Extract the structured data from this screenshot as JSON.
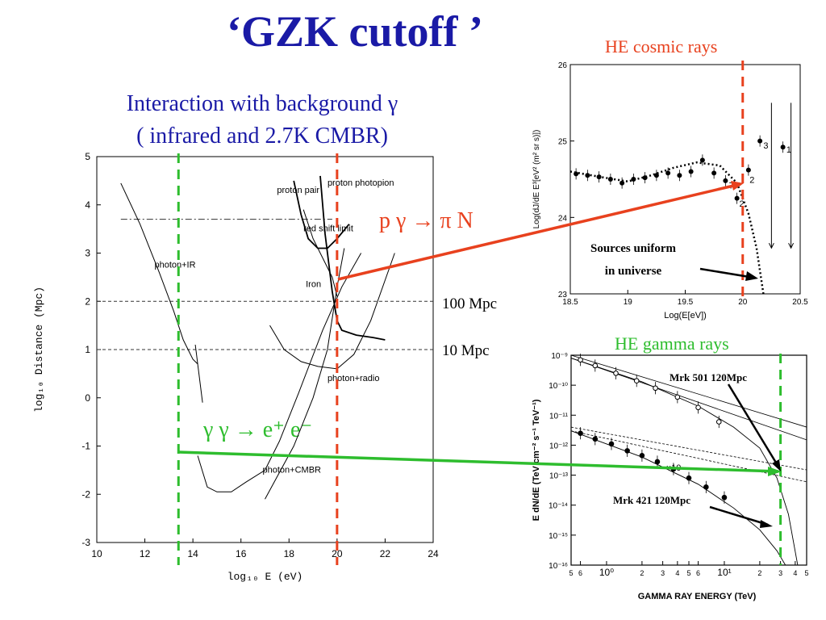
{
  "slide": {
    "title": "‘GZK cutoff ’",
    "subtitle_line1": "Interaction with background γ",
    "subtitle_line2": "( infrared and 2.7K  CMBR)",
    "reaction_proton": "p γ → π N",
    "reaction_gamma_html": "γ γ → e⁺ e⁻",
    "label_100mpc": "100 Mpc",
    "label_10mpc": "10 Mpc",
    "caption_cosmic": "HE cosmic rays",
    "caption_gamma": "HE gamma rays",
    "sources_uniform_1": "Sources uniform",
    "sources_uniform_2": "in universe",
    "mrk501": "Mrk 501 120Mpc",
    "mrk421": "Mrk 421 120Mpc"
  },
  "colors": {
    "title_blue": "#1a1aa6",
    "red_line": "#e8411e",
    "green_line": "#2ebd2e",
    "cosmic_caption": "#e8411e",
    "gamma_caption": "#2ebd2e"
  },
  "chart_data": [
    {
      "type": "line",
      "id": "distance-vs-energy",
      "xlabel": "log₁₀ E (eV)",
      "ylabel": "log₁₀ Distance (Mpc)",
      "xlim": [
        10,
        24
      ],
      "ylim": [
        -3,
        5
      ],
      "xticks": [
        10,
        12,
        14,
        16,
        18,
        20,
        22,
        24
      ],
      "yticks": [
        -3,
        -2,
        -1,
        0,
        1,
        2,
        3,
        4,
        5
      ],
      "annotations": [
        "proton pair",
        "proton photopion",
        "red shift limit",
        "photon+IR",
        "Iron",
        "photon+radio",
        "photon+CMBR"
      ],
      "reference_lines": [
        {
          "name": "red shift limit",
          "y": 3.7,
          "style": "dashdot"
        },
        {
          "name": "100 Mpc",
          "y": 2,
          "style": "dashed"
        },
        {
          "name": "10 Mpc",
          "y": 1,
          "style": "dashed"
        }
      ],
      "vertical_markers": [
        {
          "x": 13.4,
          "color": "green"
        },
        {
          "x": 20.0,
          "color": "red"
        }
      ],
      "series": [
        {
          "values": [
            [
              11.0,
              4.45
            ],
            [
              11.8,
              3.6
            ],
            [
              12.6,
              2.6
            ],
            [
              13.2,
              1.8
            ],
            [
              13.6,
              1.2
            ],
            [
              14.0,
              0.8
            ],
            [
              14.2,
              0.7
            ]
          ]
        },
        {
          "values": [
            [
              14.1,
              1.1
            ],
            [
              14.3,
              0.3
            ],
            [
              14.4,
              -0.1
            ]
          ]
        },
        {
          "values": [
            [
              18.2,
              4.5
            ],
            [
              18.5,
              3.8
            ],
            [
              18.8,
              3.3
            ],
            [
              19.2,
              3.1
            ],
            [
              19.6,
              3.1
            ],
            [
              20.0,
              3.3
            ],
            [
              20.5,
              3.6
            ]
          ]
        },
        {
          "values": [
            [
              19.3,
              4.6
            ],
            [
              19.5,
              3.4
            ],
            [
              19.8,
              2.2
            ],
            [
              20.0,
              1.6
            ],
            [
              20.2,
              1.4
            ],
            [
              20.8,
              1.3
            ],
            [
              21.5,
              1.25
            ],
            [
              22.0,
              1.2
            ]
          ]
        },
        {
          "values": [
            [
              18.6,
              3.9
            ],
            [
              19.0,
              3.3
            ],
            [
              19.4,
              2.9
            ],
            [
              19.8,
              2.5
            ],
            [
              20.0,
              2.1
            ]
          ]
        },
        {
          "values": [
            [
              17.2,
              1.5
            ],
            [
              17.8,
              1.0
            ],
            [
              18.5,
              0.75
            ],
            [
              19.2,
              0.65
            ],
            [
              20.0,
              0.6
            ],
            [
              20.7,
              0.9
            ],
            [
              21.4,
              1.6
            ],
            [
              22.4,
              3.0
            ]
          ]
        },
        {
          "values": [
            [
              20.3,
              3.1
            ],
            [
              20.0,
              2.3
            ],
            [
              19.6,
              1.0
            ],
            [
              19.0,
              0.0
            ],
            [
              18.2,
              -1.0
            ],
            [
              17.0,
              -2.1
            ]
          ]
        },
        {
          "values": [
            [
              14.2,
              -1.2
            ],
            [
              14.6,
              -1.85
            ],
            [
              15.0,
              -1.95
            ],
            [
              15.6,
              -1.95
            ],
            [
              16.2,
              -1.75
            ],
            [
              17.0,
              -1.5
            ],
            [
              17.6,
              -0.9
            ],
            [
              18.4,
              0.1
            ],
            [
              19.4,
              1.4
            ],
            [
              20.2,
              2.3
            ],
            [
              21.0,
              3.0
            ]
          ]
        }
      ]
    },
    {
      "type": "scatter",
      "id": "cosmic-ray-spectrum",
      "xlabel": "Log(E[eV])",
      "ylabel": "Log(dJ/dE E³[eV² (m² sr s)])",
      "xlim": [
        18.5,
        20.5
      ],
      "ylim": [
        23,
        26
      ],
      "xticks": [
        18.5,
        19,
        19.5,
        20,
        20.5
      ],
      "yticks": [
        23,
        24,
        25,
        26
      ],
      "points": [
        {
          "x": 18.55,
          "y": 24.57
        },
        {
          "x": 18.65,
          "y": 24.55
        },
        {
          "x": 18.75,
          "y": 24.53
        },
        {
          "x": 18.85,
          "y": 24.5
        },
        {
          "x": 18.95,
          "y": 24.45
        },
        {
          "x": 19.05,
          "y": 24.5
        },
        {
          "x": 19.15,
          "y": 24.52
        },
        {
          "x": 19.25,
          "y": 24.55
        },
        {
          "x": 19.35,
          "y": 24.58
        },
        {
          "x": 19.45,
          "y": 24.55
        },
        {
          "x": 19.55,
          "y": 24.6
        },
        {
          "x": 19.65,
          "y": 24.75
        },
        {
          "x": 19.75,
          "y": 24.58
        },
        {
          "x": 19.85,
          "y": 24.48
        },
        {
          "x": 19.95,
          "y": 24.25
        },
        {
          "x": 20.05,
          "y": 24.62
        },
        {
          "x": 20.15,
          "y": 25.0
        },
        {
          "x": 20.35,
          "y": 24.92
        }
      ],
      "point_labels": [
        {
          "x": 19.88,
          "y": 24.38,
          "text": "7"
        },
        {
          "x": 19.97,
          "y": 24.14,
          "text": "2"
        },
        {
          "x": 20.06,
          "y": 24.45,
          "text": "2"
        },
        {
          "x": 20.18,
          "y": 24.9,
          "text": "3"
        },
        {
          "x": 20.38,
          "y": 24.85,
          "text": "1"
        }
      ],
      "model_curve": [
        [
          18.5,
          24.6
        ],
        [
          18.8,
          24.52
        ],
        [
          19.0,
          24.47
        ],
        [
          19.2,
          24.55
        ],
        [
          19.4,
          24.65
        ],
        [
          19.6,
          24.72
        ],
        [
          19.8,
          24.68
        ],
        [
          19.95,
          24.45
        ],
        [
          20.05,
          24.05
        ],
        [
          20.12,
          23.6
        ],
        [
          20.18,
          23.0
        ]
      ],
      "upper_limits": [
        20.25,
        20.42
      ],
      "vertical_marker": 20.0
    },
    {
      "type": "line",
      "id": "gamma-ray-spectrum",
      "xlabel": "GAMMA RAY ENERGY  (TeV)",
      "ylabel": "E dN/dE  (TeV cm⁻² s⁻¹ TeV⁻¹)",
      "xlog": true,
      "ylog": true,
      "xlim": [
        0.5,
        50
      ],
      "ylim": [
        1e-16,
        1e-09
      ],
      "yticks_labels": [
        "10⁻⁹",
        "10⁻¹⁰",
        "10⁻¹¹",
        "10⁻¹²",
        "10⁻¹³",
        "10⁻¹⁴",
        "10⁻¹⁵",
        "10⁻¹⁶"
      ],
      "xticks_labels": [
        "5",
        "6",
        "10⁰",
        "2",
        "3",
        "4",
        "5",
        "6",
        "10¹",
        "2",
        "3",
        "4",
        "5"
      ],
      "annotations": [
        "×10"
      ],
      "series": [
        {
          "name": "Mrk 501",
          "points": [
            [
              0.6,
              7e-10
            ],
            [
              0.8,
              4.5e-10
            ],
            [
              1.2,
              2.5e-10
            ],
            [
              1.8,
              1.4e-10
            ],
            [
              2.6,
              8e-11
            ],
            [
              4,
              4e-11
            ],
            [
              6,
              1.8e-11
            ],
            [
              9,
              6e-12
            ]
          ]
        },
        {
          "name": "Mrk 421",
          "points": [
            [
              0.6,
              2.5e-12
            ],
            [
              0.8,
              1.6e-12
            ],
            [
              1.1,
              1.1e-12
            ],
            [
              1.5,
              6.5e-13
            ],
            [
              2.0,
              4.5e-13
            ],
            [
              2.7,
              2.8e-13
            ],
            [
              3.7,
              1.6e-13
            ],
            [
              5.0,
              8e-14
            ],
            [
              7.0,
              4e-14
            ],
            [
              10,
              1.8e-14
            ]
          ]
        }
      ],
      "vertical_marker": 30
    }
  ]
}
